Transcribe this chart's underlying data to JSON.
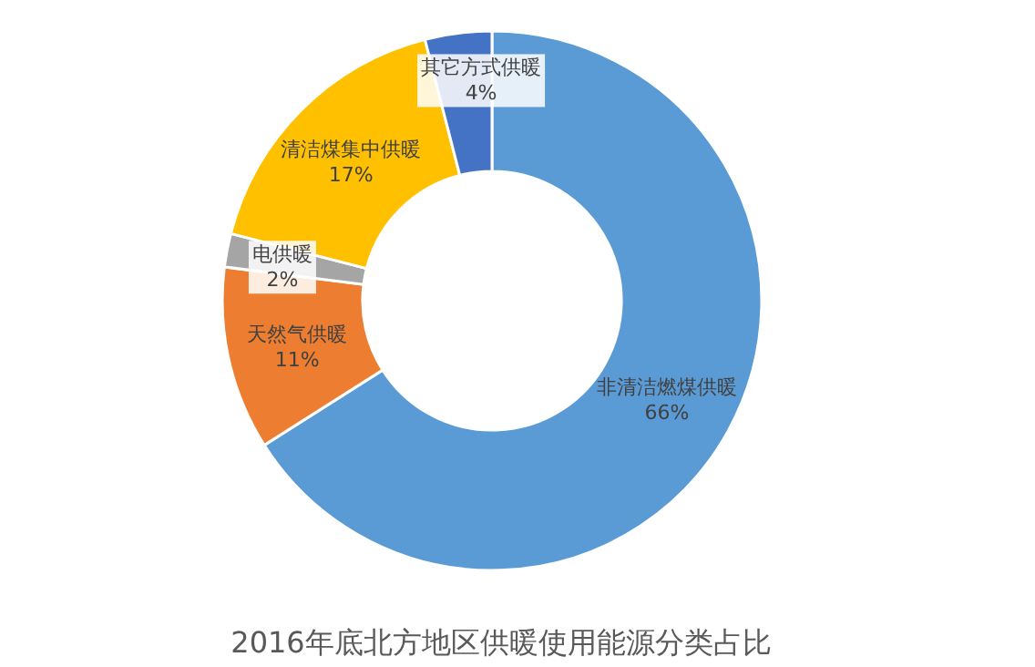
{
  "chart_data": {
    "type": "donut",
    "title": "2016年底北方地区供暖使用能源分类占比",
    "categories": [
      "非清洁燃煤供暖",
      "天然气供暖",
      "电供暖",
      "清洁煤集中供暖",
      "其它方式供暖"
    ],
    "values": [
      66,
      11,
      2,
      17,
      4
    ],
    "value_labels": [
      "66%",
      "11%",
      "2%",
      "17%",
      "4%"
    ],
    "colors": [
      "#5b9bd5",
      "#ed7d31",
      "#a5a5a5",
      "#ffc000",
      "#4472c4"
    ]
  }
}
